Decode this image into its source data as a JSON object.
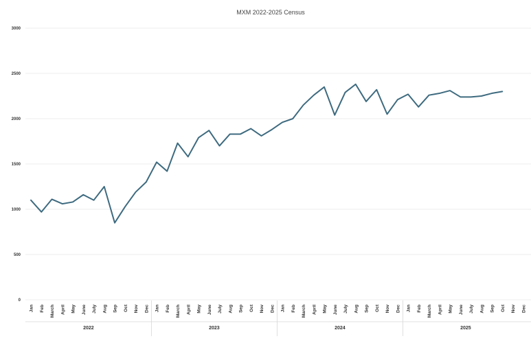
{
  "chart_data": {
    "type": "line",
    "title": "MXM 2022-2025 Census",
    "xlabel": "",
    "ylabel": "",
    "ylim": [
      0,
      3000
    ],
    "yticks": [
      0,
      500,
      1000,
      1500,
      2000,
      2500,
      3000
    ],
    "grid": true,
    "legend": "none",
    "line_color": "#3d6a7f",
    "years": [
      {
        "label": "2022",
        "months": [
          "Jan",
          "Feb",
          "March",
          "April",
          "May",
          "June",
          "July",
          "Aug",
          "Sep",
          "Oct",
          "Nov",
          "Dec"
        ]
      },
      {
        "label": "2023",
        "months": [
          "Jan",
          "Feb",
          "March",
          "April",
          "May",
          "June",
          "July",
          "Aug",
          "Sep",
          "Oct",
          "Nov",
          "Dec"
        ]
      },
      {
        "label": "2024",
        "months": [
          "Jan",
          "Feb",
          "March",
          "April",
          "May",
          "June",
          "July",
          "Aug",
          "Sep",
          "Oct",
          "Nov",
          "Dec"
        ]
      },
      {
        "label": "2025",
        "months": [
          "Jan",
          "Feb",
          "March",
          "April",
          "May",
          "June",
          "July",
          "Aug",
          "Sep",
          "Oct",
          "Nov",
          "Dec"
        ]
      }
    ],
    "series": [
      {
        "values": [
          1100,
          970,
          1110,
          1060,
          1080,
          1160,
          1100,
          1250,
          850,
          1030,
          1190,
          1300,
          1520,
          1420,
          1730,
          1580,
          1790,
          1870,
          1700,
          1830,
          1830,
          1890,
          1810,
          1880,
          1960,
          2000,
          2150,
          2260,
          2350,
          2040,
          2290,
          2380,
          2190,
          2320,
          2050,
          2210,
          2270,
          2130,
          2260,
          2280,
          2310,
          2240,
          2240,
          2250,
          2280,
          2300,
          null,
          null
        ]
      }
    ]
  }
}
